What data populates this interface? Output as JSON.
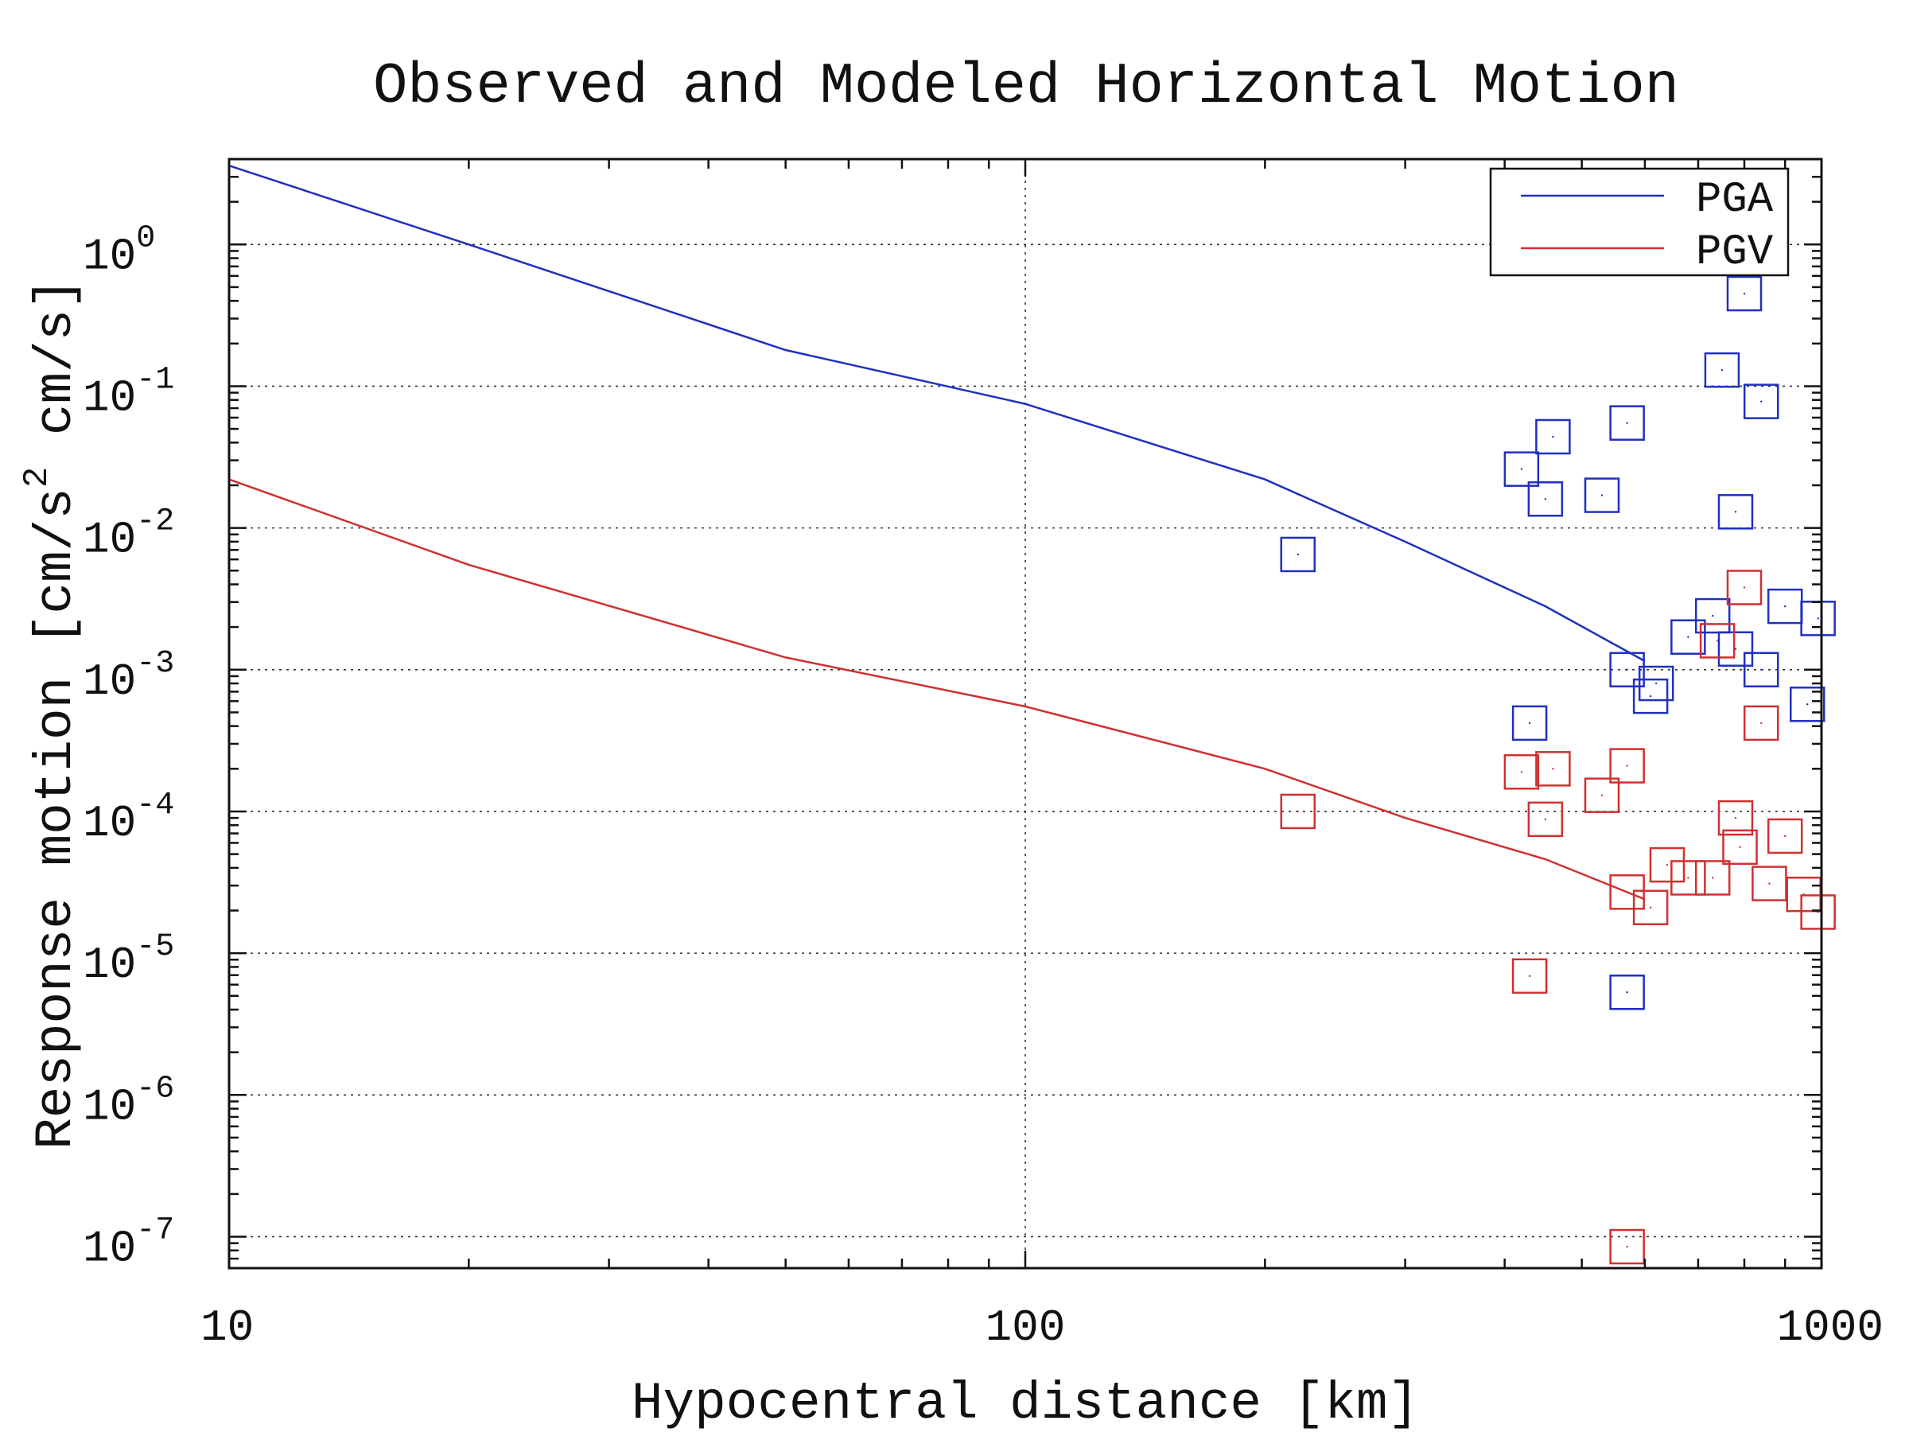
{
  "chart_data": {
    "type": "scatter",
    "title": "Observed and Modeled Horizontal Motion",
    "xlabel": "Hypocentral distance [km]",
    "ylabel": {
      "prefix": "Response motion [cm/s",
      "superscript": "2",
      "suffix": " cm/s]"
    },
    "x_scale": "log",
    "y_scale": "log",
    "xlim": [
      10,
      1000
    ],
    "ylim": [
      6e-08,
      4
    ],
    "x_ticks": [
      {
        "value": 10,
        "label": "10"
      },
      {
        "value": 100,
        "label": "100"
      },
      {
        "value": 1000,
        "label": "1000"
      }
    ],
    "y_ticks": [
      {
        "value": 1e-07,
        "base": "10",
        "exp": "-7"
      },
      {
        "value": 1e-06,
        "base": "10",
        "exp": "-6"
      },
      {
        "value": 1e-05,
        "base": "10",
        "exp": "-5"
      },
      {
        "value": 0.0001,
        "base": "10",
        "exp": "-4"
      },
      {
        "value": 0.001,
        "base": "10",
        "exp": "-3"
      },
      {
        "value": 0.01,
        "base": "10",
        "exp": "-2"
      },
      {
        "value": 0.1,
        "base": "10",
        "exp": "-1"
      },
      {
        "value": 1,
        "base": "10",
        "exp": "0"
      }
    ],
    "grid": true,
    "legend_position": "top-right",
    "series": [
      {
        "name": "PGA",
        "color": "#2030c0",
        "model": [
          [
            10,
            3.6
          ],
          [
            20,
            1.0
          ],
          [
            50,
            0.18
          ],
          [
            100,
            0.075
          ],
          [
            200,
            0.022
          ],
          [
            300,
            0.008
          ],
          [
            450,
            0.0028
          ],
          [
            600,
            0.00115
          ]
        ],
        "observed": [
          [
            220,
            0.0065
          ],
          [
            430,
            0.00042
          ],
          [
            420,
            0.026
          ],
          [
            450,
            0.016
          ],
          [
            460,
            0.044
          ],
          [
            530,
            0.017
          ],
          [
            570,
            0.055
          ],
          [
            570,
            5.3e-06
          ],
          [
            570,
            0.001
          ],
          [
            620,
            0.0008
          ],
          [
            610,
            0.00065
          ],
          [
            680,
            0.0017
          ],
          [
            730,
            0.0024
          ],
          [
            750,
            0.13
          ],
          [
            780,
            0.0014
          ],
          [
            780,
            0.013
          ],
          [
            800,
            0.45
          ],
          [
            840,
            0.078
          ],
          [
            840,
            0.001
          ],
          [
            900,
            0.0028
          ],
          [
            960,
            0.00057
          ],
          [
            990,
            0.0023
          ]
        ]
      },
      {
        "name": "PGV",
        "color": "#d03030",
        "model": [
          [
            10,
            0.022
          ],
          [
            20,
            0.0055
          ],
          [
            50,
            0.00122
          ],
          [
            100,
            0.00055
          ],
          [
            200,
            0.0002
          ],
          [
            300,
            9e-05
          ],
          [
            450,
            4.6e-05
          ],
          [
            600,
            2.4e-05
          ]
        ],
        "observed": [
          [
            220,
            0.0001
          ],
          [
            430,
            6.9e-06
          ],
          [
            420,
            0.00019
          ],
          [
            450,
            8.8e-05
          ],
          [
            460,
            0.0002
          ],
          [
            530,
            0.00013
          ],
          [
            570,
            0.00021
          ],
          [
            570,
            8.5e-08
          ],
          [
            570,
            2.7e-05
          ],
          [
            610,
            2.1e-05
          ],
          [
            640,
            4.2e-05
          ],
          [
            680,
            3.4e-05
          ],
          [
            730,
            3.4e-05
          ],
          [
            740,
            0.0016
          ],
          [
            780,
            9e-05
          ],
          [
            790,
            5.6e-05
          ],
          [
            800,
            0.0038
          ],
          [
            840,
            0.00042
          ],
          [
            860,
            3.1e-05
          ],
          [
            900,
            6.7e-05
          ],
          [
            950,
            2.6e-05
          ],
          [
            990,
            1.95e-05
          ]
        ]
      }
    ]
  }
}
